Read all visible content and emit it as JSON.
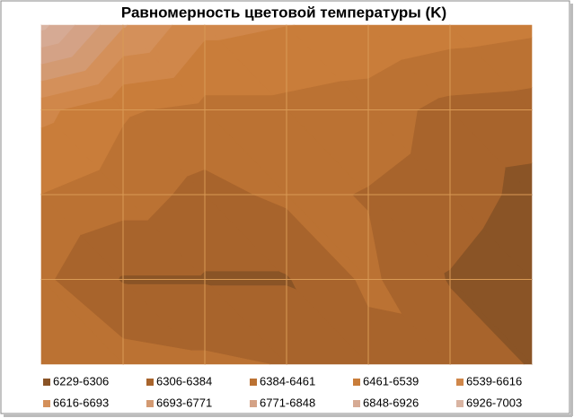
{
  "chart_data": {
    "type": "contour",
    "title": "Равномерность цветовой температуры (K)",
    "grid": true,
    "z": [
      [
        6950,
        6700,
        6560,
        6540,
        6530,
        6500,
        6480
      ],
      [
        6560,
        6470,
        6440,
        6440,
        6420,
        6360,
        6350
      ],
      [
        6460,
        6420,
        6360,
        6400,
        6380,
        6350,
        6280
      ],
      [
        6400,
        6300,
        6300,
        6300,
        6400,
        6300,
        6240
      ],
      [
        6440,
        6420,
        6400,
        6380,
        6350,
        6360,
        6300
      ]
    ],
    "bands": [
      {
        "name": "6229-6306",
        "min": 6229,
        "max": 6306,
        "color": "#8a5426"
      },
      {
        "name": "6306-6384",
        "min": 6306,
        "max": 6384,
        "color": "#a8642c"
      },
      {
        "name": "6384-6461",
        "min": 6384,
        "max": 6461,
        "color": "#bb7233"
      },
      {
        "name": "6461-6539",
        "min": 6461,
        "max": 6539,
        "color": "#c97d3a"
      },
      {
        "name": "6539-6616",
        "min": 6539,
        "max": 6616,
        "color": "#d0874a"
      },
      {
        "name": "6616-6693",
        "min": 6616,
        "max": 6693,
        "color": "#d4905a"
      },
      {
        "name": "6693-6771",
        "min": 6693,
        "max": 6771,
        "color": "#d39a72"
      },
      {
        "name": "6771-6848",
        "min": 6771,
        "max": 6848,
        "color": "#d4a286"
      },
      {
        "name": "6848-6926",
        "min": 6848,
        "max": 6926,
        "color": "#d6aa94"
      },
      {
        "name": "6926-7003",
        "min": 6926,
        "max": 7003,
        "color": "#d9b4a2"
      }
    ]
  }
}
